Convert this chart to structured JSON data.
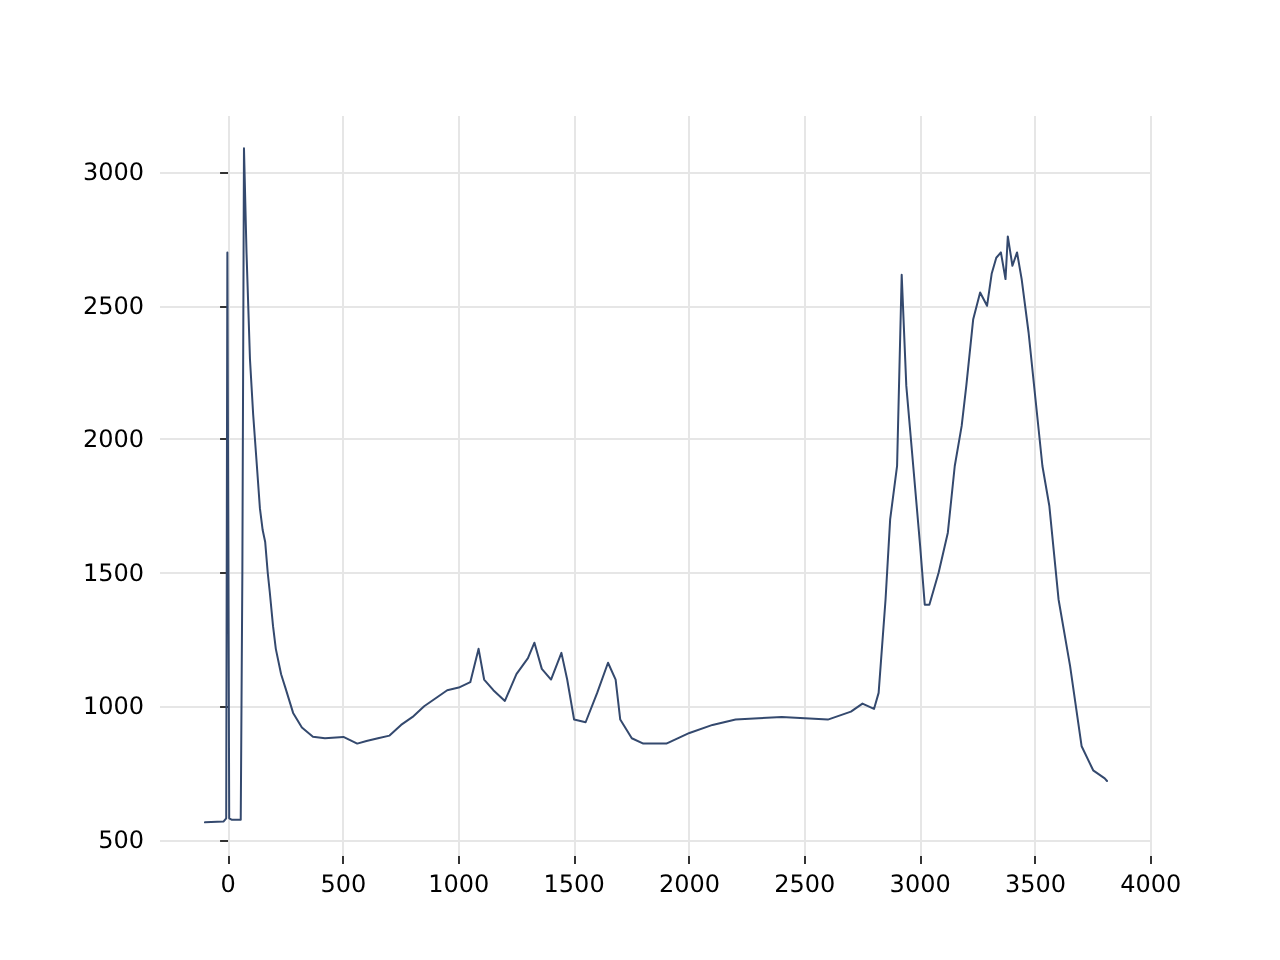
{
  "chart_data": {
    "type": "line",
    "xlim": [
      -295,
      4005
    ],
    "ylim": [
      439,
      3211
    ],
    "xticks": [
      0,
      500,
      1000,
      1500,
      2000,
      2500,
      3000,
      3500,
      4000
    ],
    "yticks": [
      500,
      1000,
      1500,
      2000,
      2500,
      3000
    ],
    "grid": true,
    "marker": "none",
    "line_style": "solid",
    "series": [
      {
        "color": "#34496e",
        "x": [
          -100,
          -20,
          -8,
          -3,
          5,
          15,
          55,
          62,
          69,
          80,
          95,
          109,
          125,
          138,
          150,
          161,
          172,
          181,
          195,
          207,
          230,
          250,
          282,
          320,
          368,
          420,
          500,
          560,
          600,
          650,
          700,
          750,
          800,
          850,
          900,
          950,
          1000,
          1050,
          1086,
          1110,
          1150,
          1200,
          1250,
          1300,
          1328,
          1360,
          1400,
          1445,
          1470,
          1500,
          1550,
          1600,
          1647,
          1680,
          1700,
          1750,
          1800,
          1900,
          2000,
          2100,
          2200,
          2300,
          2400,
          2500,
          2600,
          2700,
          2750,
          2800,
          2820,
          2850,
          2870,
          2900,
          2920,
          2940,
          2970,
          3000,
          3020,
          3040,
          3080,
          3120,
          3150,
          3180,
          3200,
          3230,
          3260,
          3290,
          3310,
          3330,
          3350,
          3370,
          3380,
          3400,
          3420,
          3440,
          3470,
          3500,
          3530,
          3560,
          3600,
          3650,
          3700,
          3750,
          3800,
          3810
        ],
        "values": [
          565,
          568,
          580,
          2700,
          580,
          575,
          575,
          1500,
          3090,
          2700,
          2300,
          2091,
          1900,
          1742,
          1660,
          1615,
          1500,
          1426,
          1300,
          1215,
          1120,
          1065,
          975,
          920,
          886,
          880,
          885,
          860,
          870,
          880,
          890,
          930,
          960,
          1000,
          1030,
          1060,
          1070,
          1090,
          1215,
          1100,
          1060,
          1020,
          1120,
          1180,
          1238,
          1140,
          1100,
          1200,
          1100,
          950,
          940,
          1050,
          1163,
          1100,
          950,
          880,
          860,
          860,
          900,
          930,
          950,
          955,
          960,
          955,
          950,
          980,
          1010,
          990,
          1050,
          1400,
          1700,
          1900,
          2616,
          2200,
          1900,
          1600,
          1380,
          1380,
          1500,
          1650,
          1900,
          2050,
          2200,
          2450,
          2550,
          2500,
          2620,
          2680,
          2700,
          2600,
          2760,
          2650,
          2700,
          2600,
          2400,
          2150,
          1900,
          1750,
          1400,
          1150,
          850,
          760,
          730,
          720
        ]
      }
    ]
  }
}
